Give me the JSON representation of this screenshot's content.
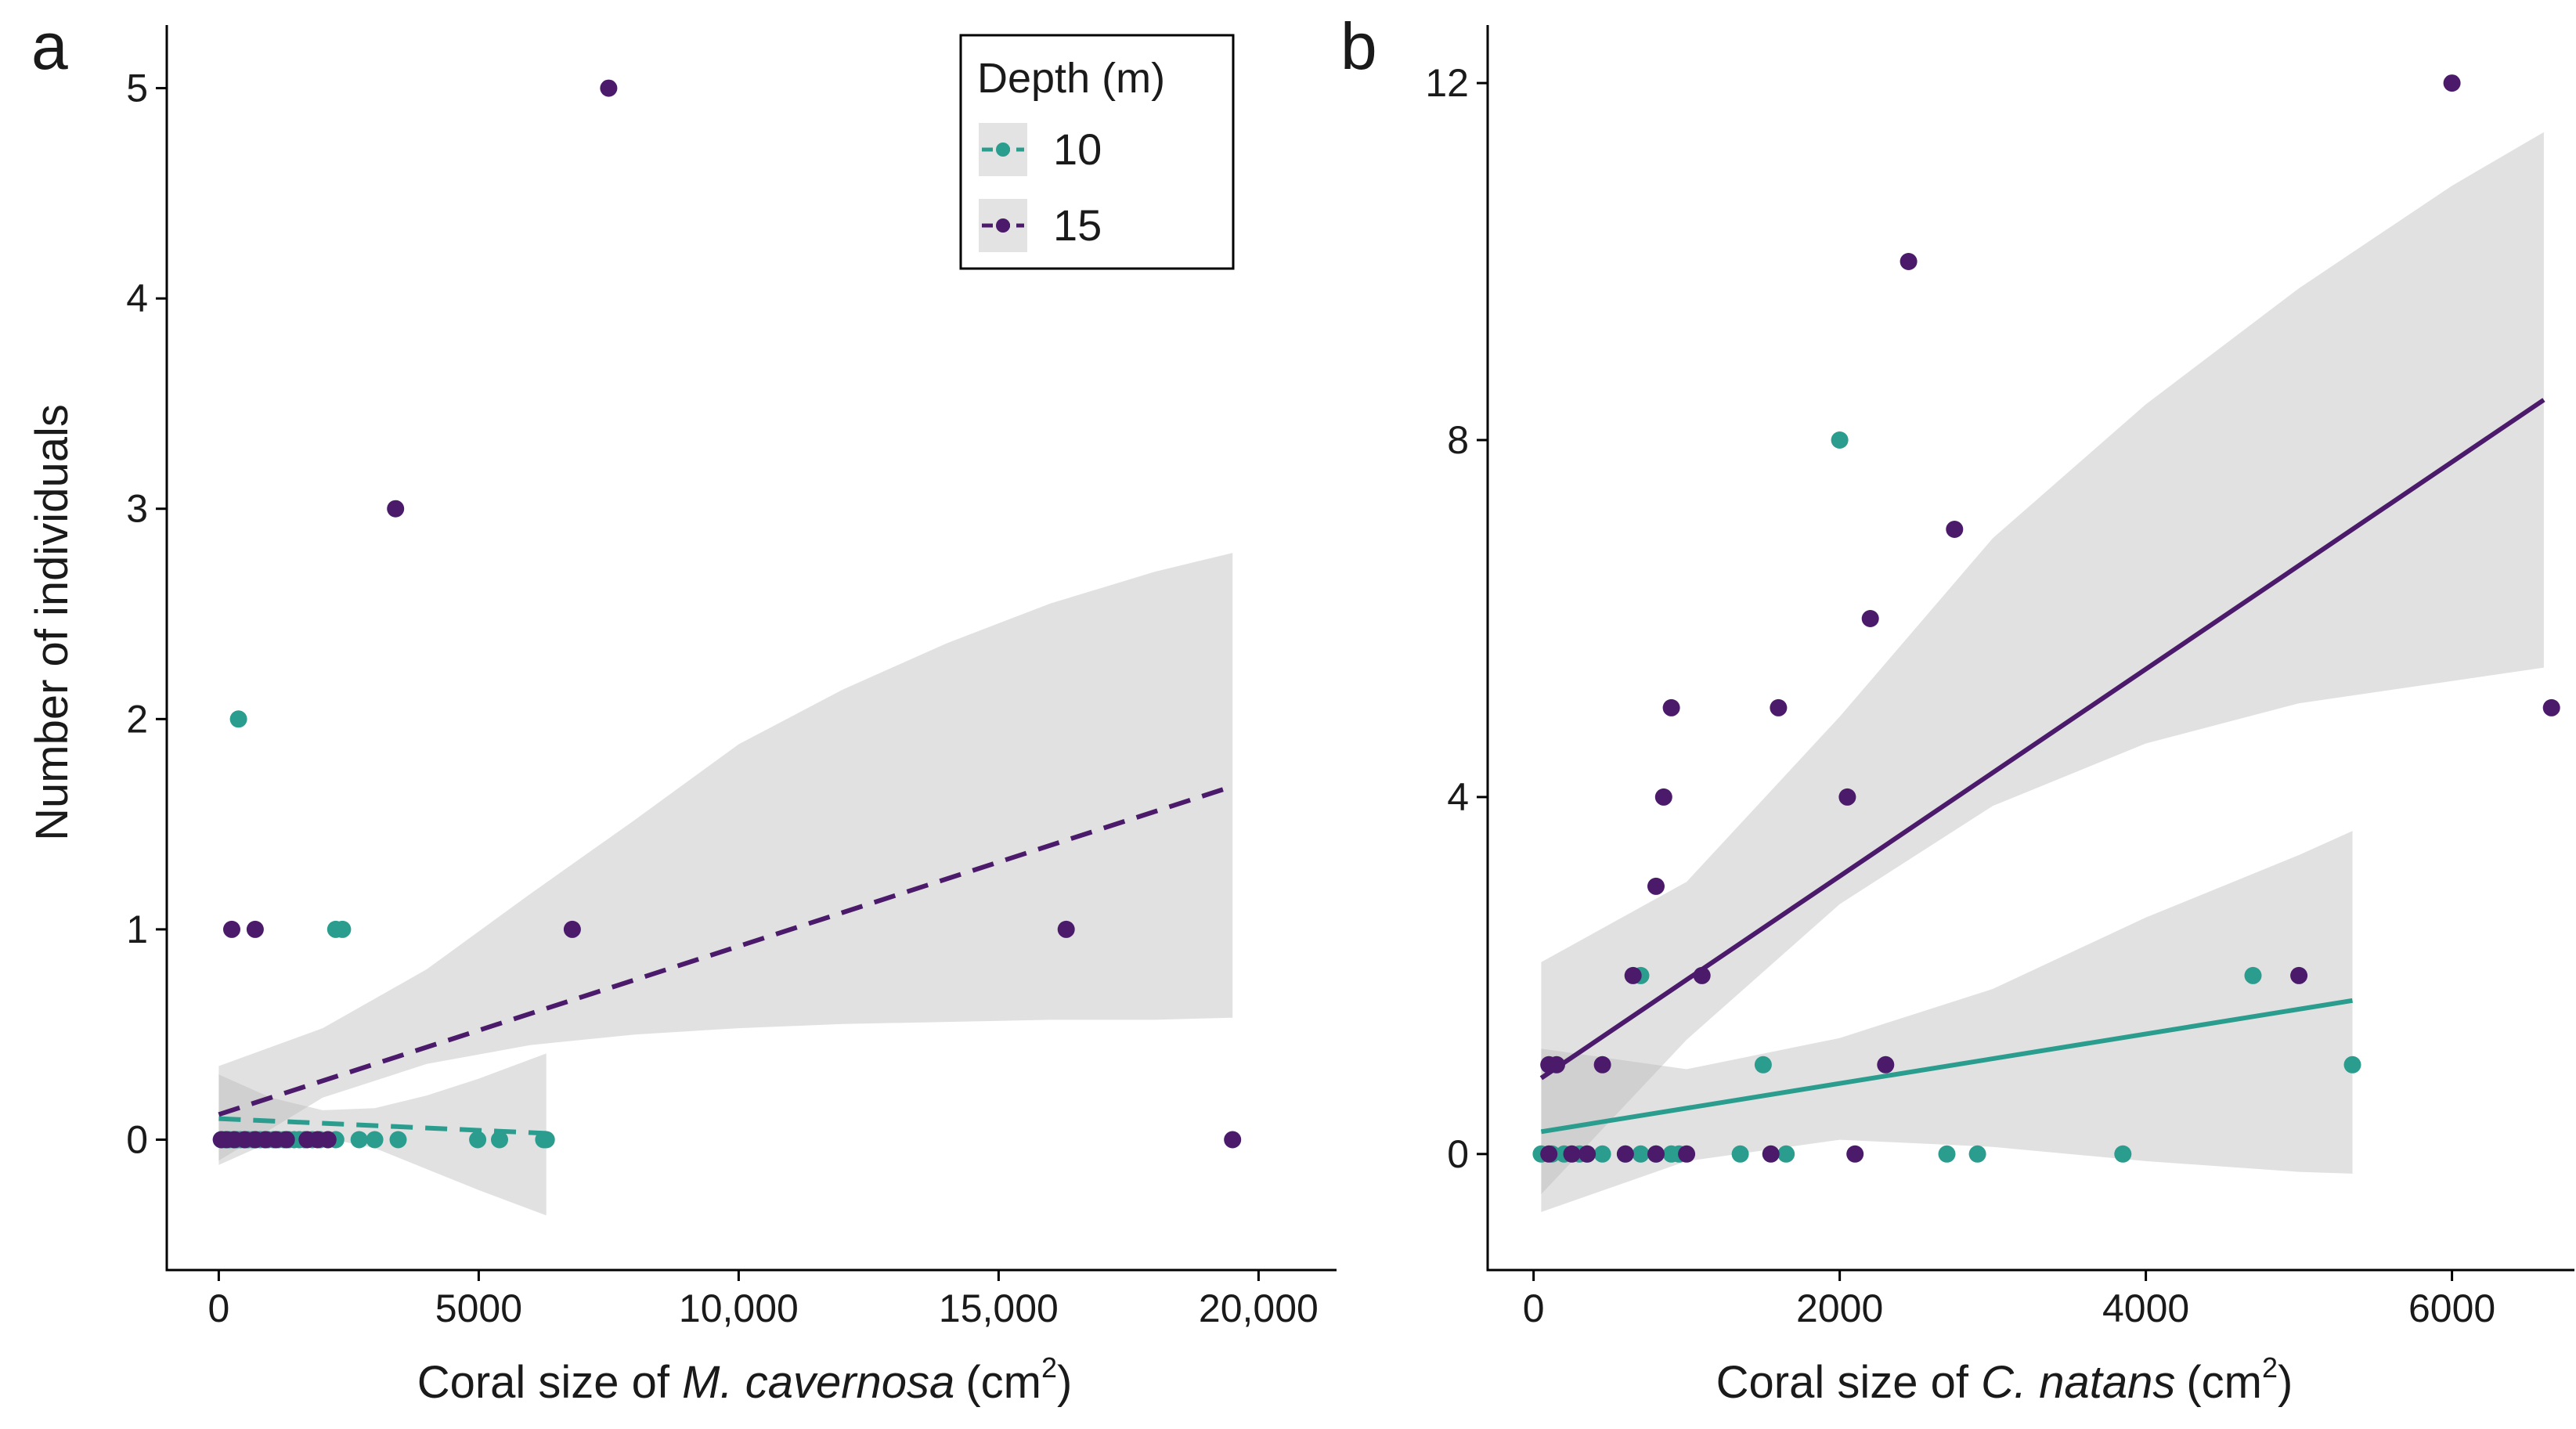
{
  "colors": {
    "depth_10": "#2a9d8f",
    "depth_15": "#4b1a6b",
    "ribbon": "#bdbdbd"
  },
  "legend": {
    "title": "Depth (m)",
    "items": [
      "10",
      "15"
    ]
  },
  "chart_data": [
    {
      "type": "scatter",
      "panel_label": "a",
      "xlabel_prefix": "Coral size of ",
      "xlabel_species": "M. cavernosa",
      "xlabel_unit": "(cm",
      "xlabel_sup": "2",
      "xlabel_close": ")",
      "ylabel": "Number of individuals",
      "xlim": [
        -1000,
        21500
      ],
      "ylim": [
        -0.62,
        5.3
      ],
      "xticks": [
        0,
        5000,
        10000,
        15000,
        20000
      ],
      "xtick_labels": [
        "0",
        "5000",
        "10,000",
        "15,000",
        "20,000"
      ],
      "yticks": [
        0,
        1,
        2,
        3,
        4,
        5
      ],
      "ytick_labels": [
        "0",
        "1",
        "2",
        "3",
        "4",
        "5"
      ],
      "line_style": "dashed",
      "series": [
        {
          "name": "10",
          "points": [
            [
              50,
              0
            ],
            [
              120,
              0
            ],
            [
              200,
              0
            ],
            [
              280,
              0
            ],
            [
              350,
              0
            ],
            [
              420,
              0
            ],
            [
              500,
              0
            ],
            [
              560,
              0
            ],
            [
              650,
              0
            ],
            [
              720,
              0
            ],
            [
              800,
              0
            ],
            [
              880,
              0
            ],
            [
              950,
              0
            ],
            [
              1050,
              0
            ],
            [
              1150,
              0
            ],
            [
              1250,
              0
            ],
            [
              1350,
              0
            ],
            [
              1450,
              0
            ],
            [
              1550,
              0
            ],
            [
              1650,
              0
            ],
            [
              1800,
              0
            ],
            [
              1950,
              0
            ],
            [
              2100,
              0
            ],
            [
              2250,
              0
            ],
            [
              2700,
              0
            ],
            [
              3000,
              0
            ],
            [
              3450,
              0
            ],
            [
              4980,
              0
            ],
            [
              5400,
              0
            ],
            [
              6250,
              0
            ],
            [
              6300,
              0
            ],
            [
              380,
              2
            ],
            [
              2250,
              1
            ],
            [
              2380,
              1
            ]
          ],
          "fit": {
            "x": [
              0,
              6300
            ],
            "y": [
              0.1,
              0.03
            ]
          },
          "ci": {
            "x": [
              0,
              1000,
              2000,
              3000,
              4000,
              5000,
              6300
            ],
            "lower": [
              -0.12,
              -0.01,
              0.01,
              -0.04,
              -0.14,
              -0.24,
              -0.36
            ],
            "upper": [
              0.31,
              0.2,
              0.14,
              0.15,
              0.21,
              0.29,
              0.41
            ]
          }
        },
        {
          "name": "15",
          "points": [
            [
              50,
              0
            ],
            [
              150,
              0
            ],
            [
              300,
              0
            ],
            [
              500,
              0
            ],
            [
              700,
              0
            ],
            [
              900,
              0
            ],
            [
              1100,
              0
            ],
            [
              1300,
              0
            ],
            [
              1700,
              0
            ],
            [
              1900,
              0
            ],
            [
              2100,
              0
            ],
            [
              250,
              1
            ],
            [
              700,
              1
            ],
            [
              3400,
              3
            ],
            [
              7500,
              5
            ],
            [
              6800,
              1
            ],
            [
              16300,
              1
            ],
            [
              19500,
              0
            ]
          ],
          "fit": {
            "x": [
              0,
              19500
            ],
            "y": [
              0.12,
              1.68
            ]
          },
          "ci": {
            "x": [
              0,
              2000,
              4000,
              6000,
              8000,
              10000,
              12000,
              14000,
              16000,
              18000,
              19500
            ],
            "lower": [
              -0.1,
              0.2,
              0.36,
              0.45,
              0.5,
              0.53,
              0.55,
              0.56,
              0.57,
              0.57,
              0.58
            ],
            "upper": [
              0.35,
              0.53,
              0.81,
              1.17,
              1.52,
              1.88,
              2.14,
              2.36,
              2.55,
              2.7,
              2.79
            ]
          }
        }
      ]
    },
    {
      "type": "scatter",
      "panel_label": "b",
      "xlabel_prefix": "Coral size of ",
      "xlabel_species": "C. natans",
      "xlabel_unit": "(cm",
      "xlabel_sup": "2",
      "xlabel_close": ")",
      "ylabel": "",
      "xlim": [
        -300,
        6800
      ],
      "ylim": [
        -1.3,
        12.65
      ],
      "xticks": [
        0,
        2000,
        4000,
        6000
      ],
      "xtick_labels": [
        "0",
        "2000",
        "4000",
        "6000"
      ],
      "yticks": [
        0,
        4,
        8,
        12
      ],
      "ytick_labels": [
        "0",
        "4",
        "8",
        "12"
      ],
      "line_style": "solid",
      "series": [
        {
          "name": "10",
          "points": [
            [
              50,
              0
            ],
            [
              120,
              0
            ],
            [
              200,
              0
            ],
            [
              300,
              0
            ],
            [
              350,
              0
            ],
            [
              450,
              0
            ],
            [
              600,
              0
            ],
            [
              700,
              0
            ],
            [
              800,
              0
            ],
            [
              900,
              0
            ],
            [
              950,
              0
            ],
            [
              1350,
              0
            ],
            [
              1650,
              0
            ],
            [
              2700,
              0
            ],
            [
              2900,
              0
            ],
            [
              3850,
              0
            ],
            [
              700,
              2
            ],
            [
              1500,
              1
            ],
            [
              2000,
              8
            ],
            [
              4700,
              2
            ],
            [
              5350,
              1
            ]
          ],
          "fit": {
            "x": [
              50,
              5350
            ],
            "y": [
              0.25,
              1.72
            ]
          },
          "ci": {
            "x": [
              50,
              1000,
              2000,
              3000,
              4000,
              5000,
              5350
            ],
            "lower": [
              -0.65,
              -0.08,
              0.16,
              0.08,
              -0.08,
              -0.2,
              -0.22
            ],
            "upper": [
              1.18,
              0.95,
              1.3,
              1.85,
              2.65,
              3.35,
              3.62
            ]
          }
        },
        {
          "name": "15",
          "points": [
            [
              100,
              0
            ],
            [
              250,
              0
            ],
            [
              350,
              0
            ],
            [
              600,
              0
            ],
            [
              800,
              0
            ],
            [
              1000,
              0
            ],
            [
              1550,
              0
            ],
            [
              2100,
              0
            ],
            [
              100,
              1
            ],
            [
              150,
              1
            ],
            [
              450,
              1
            ],
            [
              2300,
              1
            ],
            [
              650,
              2
            ],
            [
              1100,
              2
            ],
            [
              5000,
              2
            ],
            [
              800,
              3
            ],
            [
              850,
              4
            ],
            [
              2050,
              4
            ],
            [
              900,
              5
            ],
            [
              1600,
              5
            ],
            [
              6650,
              5
            ],
            [
              2200,
              6
            ],
            [
              2750,
              7
            ],
            [
              2450,
              10
            ],
            [
              6000,
              12
            ]
          ],
          "fit": {
            "x": [
              50,
              6600
            ],
            "y": [
              0.85,
              8.45
            ]
          },
          "ci": {
            "x": [
              50,
              1000,
              2000,
              3000,
              4000,
              5000,
              6000,
              6600
            ],
            "lower": [
              -0.45,
              1.28,
              2.8,
              3.9,
              4.6,
              5.05,
              5.3,
              5.45
            ],
            "upper": [
              2.15,
              3.05,
              4.9,
              6.9,
              8.4,
              9.7,
              10.85,
              11.45
            ]
          }
        }
      ]
    }
  ]
}
